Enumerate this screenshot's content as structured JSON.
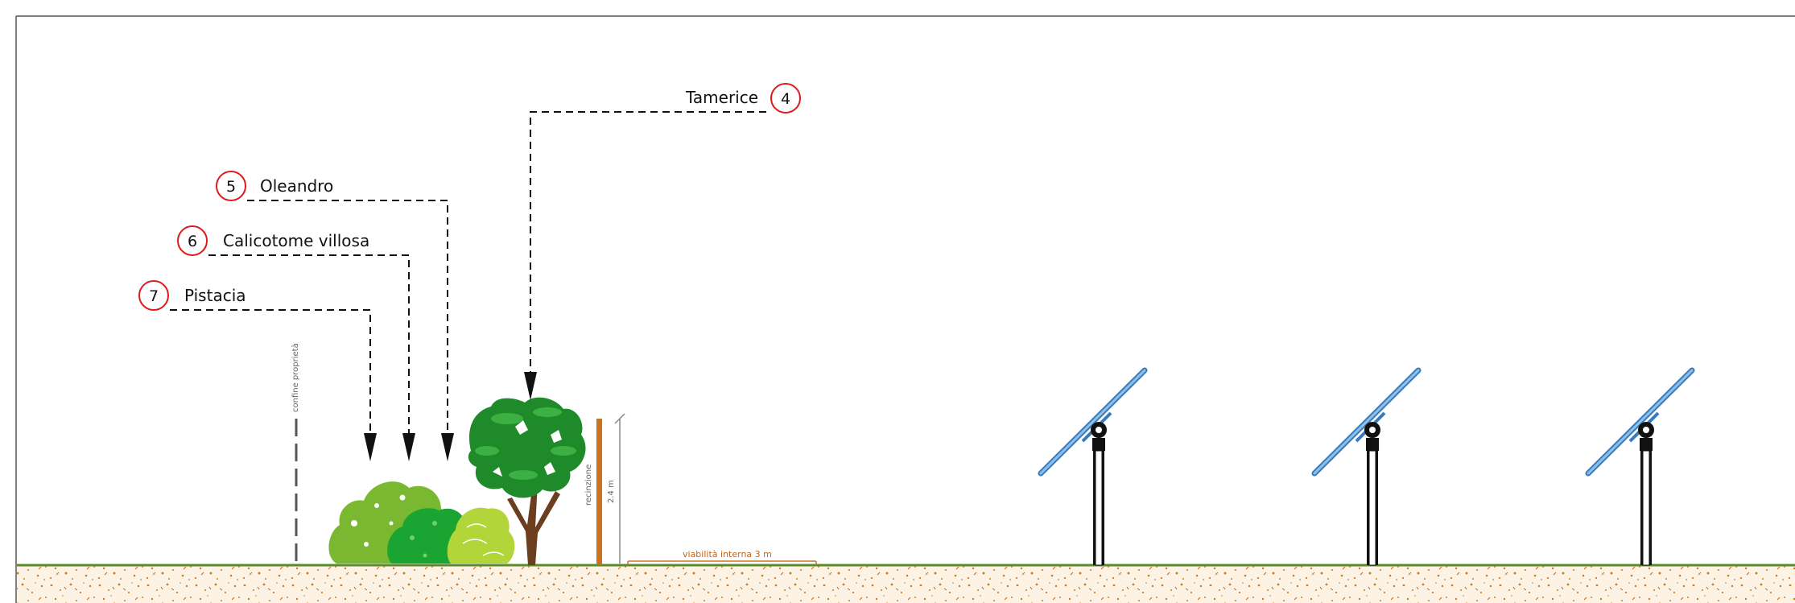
{
  "species": [
    {
      "num": "4",
      "name": "Tamerice"
    },
    {
      "num": "5",
      "name": "Oleandro"
    },
    {
      "num": "6",
      "name": "Calicotome villosa"
    },
    {
      "num": "7",
      "name": "Pistacia"
    }
  ],
  "property_boundary": "confine proprietà",
  "fence": {
    "label": "recinzione",
    "height": "2.4 m"
  },
  "internal_road": "viabilità interna 3 m",
  "colors": {
    "callout_circle": "#e0191b",
    "ground": "#fdf3e4",
    "soil_dots": "#d07a1e",
    "grass": "#5a8a2a",
    "fence": "#c87222",
    "panel": "#5b9bd5",
    "mount": "#111111"
  },
  "icons": {
    "shrub": "shrub-icon",
    "tree": "tree-icon",
    "solar": "solar-tracker-icon"
  }
}
